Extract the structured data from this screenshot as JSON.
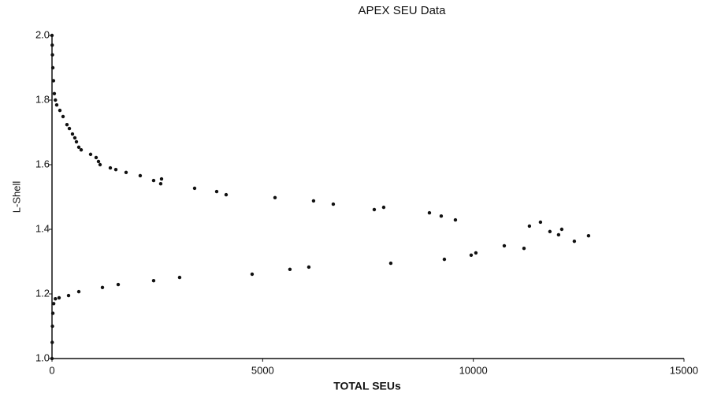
{
  "chart_data": {
    "type": "scatter",
    "title": "APEX SEU Data",
    "x_label": "TOTAL SEUs",
    "y_label": "L-Shell",
    "color": "#111111",
    "xlim": [
      0,
      15000
    ],
    "xticks": [
      0,
      5000,
      10000,
      15000
    ],
    "ylim": [
      1.0,
      2.0
    ],
    "yticks": [
      {
        "value": 1.0,
        "label": "1.0"
      },
      {
        "value": 1.2,
        "label": "1.2"
      },
      {
        "value": 1.4,
        "label": "1.4"
      },
      {
        "value": 1.6,
        "label": "1.6"
      },
      {
        "value": 1.8,
        "label": "1.8"
      },
      {
        "value": 2.0,
        "label": "2.0"
      }
    ],
    "x": [
      0,
      5,
      10,
      20,
      35,
      55,
      80,
      112,
      187,
      262,
      355,
      412,
      486,
      542,
      580,
      636,
      692,
      916,
      1047,
      1103,
      1141,
      1384,
      1515,
      1758,
      2094,
      2412,
      2580,
      2600,
      3385,
      3909,
      4133,
      5293,
      6208,
      6676,
      7649,
      7873,
      8958,
      9238,
      9575,
      11332,
      11594,
      11818,
      12024,
      12099,
      12398,
      12735,
      0,
      5,
      10,
      20,
      40,
      80,
      168,
      393,
      636,
      1197,
      1571,
      2412,
      3029,
      4750,
      5647,
      6096,
      8041,
      9313,
      9949,
      10061,
      10735,
      11203
    ],
    "y": [
      2.0,
      1.97,
      1.94,
      1.9,
      1.86,
      1.82,
      1.8,
      1.785,
      1.768,
      1.749,
      1.724,
      1.712,
      1.695,
      1.683,
      1.671,
      1.654,
      1.646,
      1.632,
      1.622,
      1.61,
      1.6,
      1.59,
      1.585,
      1.576,
      1.566,
      1.551,
      1.541,
      1.556,
      1.527,
      1.517,
      1.507,
      1.498,
      1.488,
      1.478,
      1.461,
      1.468,
      1.451,
      1.441,
      1.429,
      1.41,
      1.422,
      1.393,
      1.383,
      1.4,
      1.363,
      1.38,
      1.0,
      1.05,
      1.1,
      1.14,
      1.17,
      1.185,
      1.188,
      1.195,
      1.207,
      1.22,
      1.229,
      1.241,
      1.251,
      1.261,
      1.276,
      1.283,
      1.295,
      1.307,
      1.32,
      1.327,
      1.349,
      1.341
    ]
  }
}
